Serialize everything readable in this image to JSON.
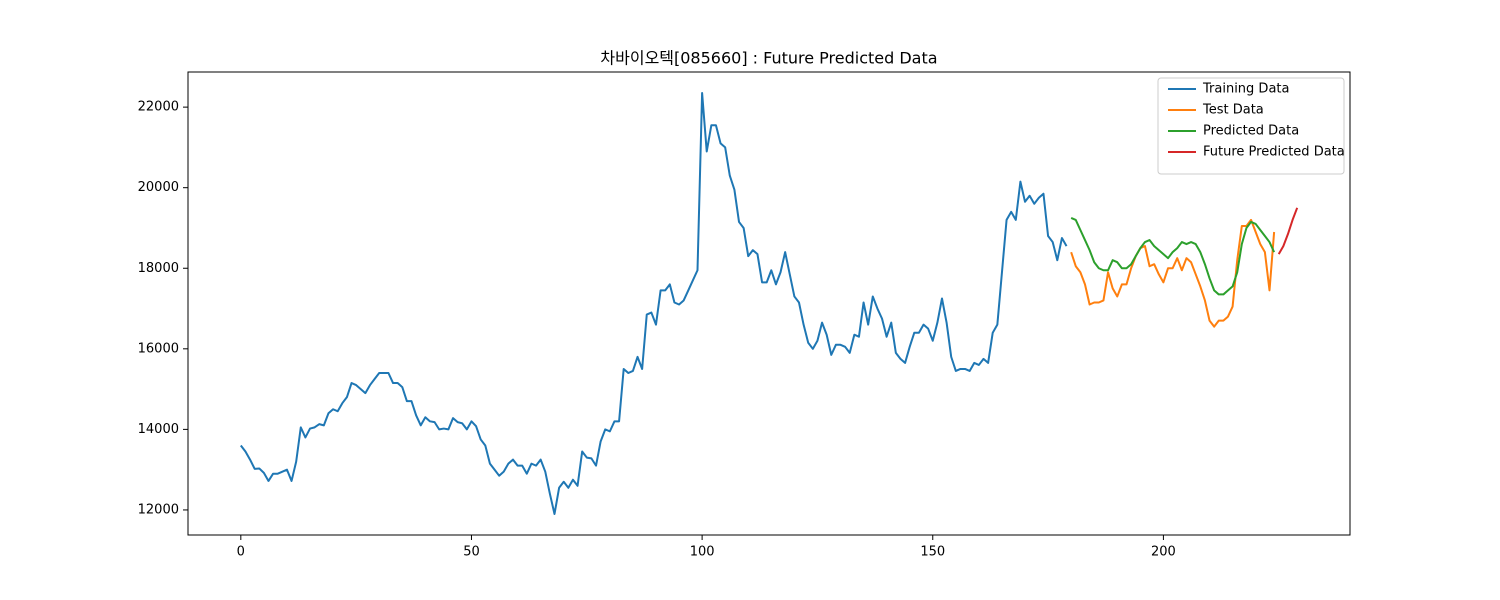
{
  "chart_data": {
    "type": "line",
    "title": "차바이오텍[085660] : Future Predicted Data",
    "xlim": [
      -11.45,
      240.45
    ],
    "ylim": [
      11378,
      22872
    ],
    "xticks": [
      0,
      50,
      100,
      150,
      200
    ],
    "yticks": [
      12000,
      14000,
      16000,
      18000,
      20000,
      22000
    ],
    "legend": "upper right",
    "series": [
      {
        "name": "Training Data",
        "color": "#1f77b4",
        "x": [
          0,
          1,
          2,
          3,
          4,
          5,
          6,
          7,
          8,
          9,
          10,
          11,
          12,
          13,
          14,
          15,
          16,
          17,
          18,
          19,
          20,
          21,
          22,
          23,
          24,
          25,
          26,
          27,
          28,
          29,
          30,
          31,
          32,
          33,
          34,
          35,
          36,
          37,
          38,
          39,
          40,
          41,
          42,
          43,
          44,
          45,
          46,
          47,
          48,
          49,
          50,
          51,
          52,
          53,
          54,
          55,
          56,
          57,
          58,
          59,
          60,
          61,
          62,
          63,
          64,
          65,
          66,
          67,
          68,
          69,
          70,
          71,
          72,
          73,
          74,
          75,
          76,
          77,
          78,
          79,
          80,
          81,
          82,
          83,
          84,
          85,
          86,
          87,
          88,
          89,
          90,
          91,
          92,
          93,
          94,
          95,
          96,
          97,
          98,
          99,
          100,
          101,
          102,
          103,
          104,
          105,
          106,
          107,
          108,
          109,
          110,
          111,
          112,
          113,
          114,
          115,
          116,
          117,
          118,
          119,
          120,
          121,
          122,
          123,
          124,
          125,
          126,
          127,
          128,
          129,
          130,
          131,
          132,
          133,
          134,
          135,
          136,
          137,
          138,
          139,
          140,
          141,
          142,
          143,
          144,
          145,
          146,
          147,
          148,
          149,
          150,
          151,
          152,
          153,
          154,
          155,
          156,
          157,
          158,
          159,
          160,
          161,
          162,
          163,
          164,
          165,
          166,
          167,
          168,
          169,
          170,
          171,
          172,
          173,
          174,
          175,
          176,
          177,
          178,
          179
        ],
        "values": [
          13600,
          13450,
          13250,
          13020,
          13030,
          12920,
          12720,
          12900,
          12900,
          12950,
          13000,
          12720,
          13200,
          14050,
          13800,
          14020,
          14050,
          14130,
          14100,
          14400,
          14500,
          14450,
          14650,
          14800,
          15150,
          15100,
          15000,
          14900,
          15100,
          15250,
          15400,
          15400,
          15400,
          15150,
          15150,
          15050,
          14700,
          14700,
          14350,
          14100,
          14300,
          14200,
          14180,
          14000,
          14020,
          14000,
          14280,
          14180,
          14150,
          14000,
          14200,
          14080,
          13750,
          13600,
          13150,
          13000,
          12850,
          12950,
          13150,
          13250,
          13100,
          13100,
          12900,
          13150,
          13100,
          13250,
          12950,
          12400,
          11900,
          12550,
          12700,
          12550,
          12750,
          12600,
          13450,
          13300,
          13280,
          13100,
          13700,
          14000,
          13950,
          14200,
          14200,
          15500,
          15400,
          15450,
          15800,
          15500,
          16850,
          16900,
          16600,
          17450,
          17450,
          17600,
          17150,
          17100,
          17200,
          17450,
          17700,
          17950,
          22350,
          20900,
          21550,
          21550,
          21100,
          21000,
          20300,
          19950,
          19150,
          19000,
          18300,
          18450,
          18350,
          17650,
          17650,
          17950,
          17600,
          17900,
          18400,
          17850,
          17300,
          17150,
          16600,
          16150,
          16000,
          16200,
          16650,
          16350,
          15850,
          16100,
          16100,
          16050,
          15900,
          16350,
          16300,
          17150,
          16600,
          17300,
          17000,
          16750,
          16300,
          16650,
          15900,
          15750,
          15650,
          16050,
          16400,
          16400,
          16600,
          16500,
          16200,
          16650,
          17250,
          16650,
          15800,
          15450,
          15500,
          15500,
          15450,
          15650,
          15600,
          15750,
          15650,
          16400,
          16600,
          17900,
          19200,
          19400,
          19200,
          20150,
          19650,
          19800,
          19600,
          19750,
          19850,
          18800,
          18650,
          18200,
          18750,
          18550
        ]
      },
      {
        "name": "Test Data",
        "color": "#ff7f0e",
        "x": [
          180,
          181,
          182,
          183,
          184,
          185,
          186,
          187,
          188,
          189,
          190,
          191,
          192,
          193,
          194,
          195,
          196,
          197,
          198,
          199,
          200,
          201,
          202,
          203,
          204,
          205,
          206,
          207,
          208,
          209,
          210,
          211,
          212,
          213,
          214,
          215,
          216,
          217,
          218,
          219,
          220,
          221,
          222,
          223,
          224
        ],
        "values": [
          18400,
          18050,
          17900,
          17600,
          17100,
          17150,
          17150,
          17200,
          17900,
          17500,
          17300,
          17600,
          17600,
          18000,
          18300,
          18500,
          18550,
          18050,
          18100,
          17850,
          17650,
          18000,
          18000,
          18250,
          17950,
          18250,
          18150,
          17850,
          17550,
          17200,
          16700,
          16550,
          16700,
          16700,
          16800,
          17050,
          18200,
          19050,
          19050,
          19200,
          18900,
          18600,
          18400,
          17450,
          18900
        ]
      },
      {
        "name": "Predicted Data",
        "color": "#2ca02c",
        "x": [
          180,
          181,
          182,
          183,
          184,
          185,
          186,
          187,
          188,
          189,
          190,
          191,
          192,
          193,
          194,
          195,
          196,
          197,
          198,
          199,
          200,
          201,
          202,
          203,
          204,
          205,
          206,
          207,
          208,
          209,
          210,
          211,
          212,
          213,
          214,
          215,
          216,
          217,
          218,
          219,
          220,
          221,
          222,
          223,
          224
        ],
        "values": [
          19250,
          19200,
          18950,
          18700,
          18450,
          18150,
          18000,
          17950,
          17950,
          18200,
          18150,
          18000,
          18000,
          18100,
          18300,
          18500,
          18650,
          18700,
          18550,
          18450,
          18350,
          18250,
          18400,
          18500,
          18650,
          18600,
          18650,
          18600,
          18400,
          18100,
          17750,
          17450,
          17350,
          17350,
          17450,
          17550,
          17900,
          18600,
          19000,
          19150,
          19100,
          18950,
          18800,
          18650,
          18400
        ]
      },
      {
        "name": "Future Predicted Data",
        "color": "#d62728",
        "x": [
          225,
          226,
          227,
          228,
          229
        ],
        "values": [
          18350,
          18550,
          18850,
          19200,
          19500
        ]
      }
    ]
  }
}
